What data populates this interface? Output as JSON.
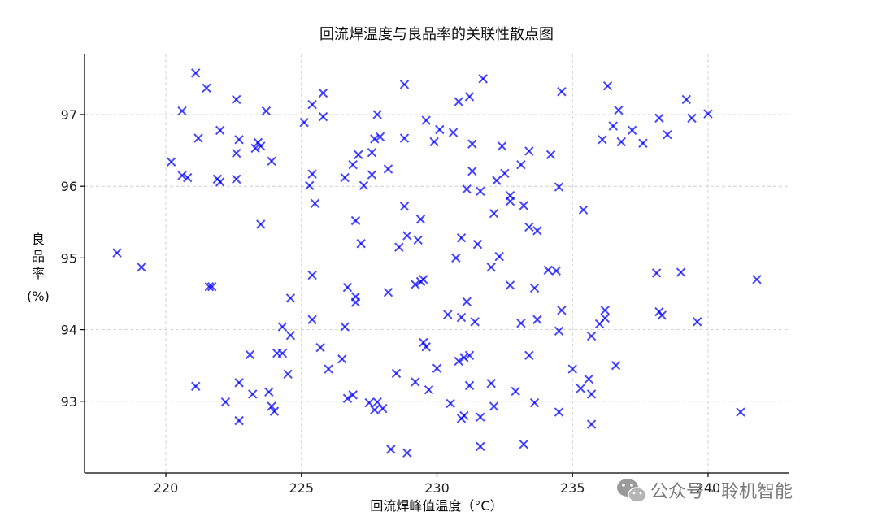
{
  "chart_data": {
    "type": "scatter",
    "title": "回流焊温度与良品率的关联性散点图",
    "xlabel": "回流焊峰值温度（°C）",
    "ylabel": [
      "良",
      "品",
      "率",
      "(%)"
    ],
    "xlim": [
      217,
      243
    ],
    "ylim": [
      92.0,
      97.85
    ],
    "x_ticks": [
      220,
      225,
      230,
      235,
      240
    ],
    "y_ticks": [
      93,
      94,
      95,
      96,
      97
    ],
    "grid": true,
    "marker": "x",
    "color": "#0000ff",
    "points": [
      [
        221.1,
        97.58
      ],
      [
        221.5,
        97.37
      ],
      [
        222.6,
        97.21
      ],
      [
        228.8,
        97.42
      ],
      [
        231.7,
        97.5
      ],
      [
        231.2,
        97.25
      ],
      [
        225.8,
        97.3
      ],
      [
        225.4,
        97.14
      ],
      [
        234.6,
        97.32
      ],
      [
        236.3,
        97.4
      ],
      [
        230.8,
        97.18
      ],
      [
        220.6,
        97.05
      ],
      [
        223.7,
        97.05
      ],
      [
        225.8,
        96.97
      ],
      [
        227.8,
        97.0
      ],
      [
        229.6,
        96.92
      ],
      [
        225.1,
        96.89
      ],
      [
        230.1,
        96.79
      ],
      [
        230.6,
        96.75
      ],
      [
        236.7,
        97.06
      ],
      [
        238.2,
        96.95
      ],
      [
        239.2,
        97.21
      ],
      [
        239.4,
        96.95
      ],
      [
        240.0,
        97.01
      ],
      [
        236.5,
        96.84
      ],
      [
        237.2,
        96.78
      ],
      [
        238.5,
        96.72
      ],
      [
        236.1,
        96.65
      ],
      [
        236.8,
        96.62
      ],
      [
        237.6,
        96.6
      ],
      [
        221.2,
        96.67
      ],
      [
        222.0,
        96.78
      ],
      [
        222.7,
        96.65
      ],
      [
        223.4,
        96.61
      ],
      [
        223.3,
        96.53
      ],
      [
        223.5,
        96.56
      ],
      [
        222.6,
        96.46
      ],
      [
        223.9,
        96.35
      ],
      [
        227.7,
        96.66
      ],
      [
        227.9,
        96.69
      ],
      [
        228.8,
        96.67
      ],
      [
        229.9,
        96.62
      ],
      [
        231.3,
        96.59
      ],
      [
        232.4,
        96.56
      ],
      [
        233.4,
        96.49
      ],
      [
        234.2,
        96.44
      ],
      [
        227.1,
        96.44
      ],
      [
        227.6,
        96.47
      ],
      [
        226.9,
        96.3
      ],
      [
        228.2,
        96.24
      ],
      [
        227.6,
        96.16
      ],
      [
        226.6,
        96.12
      ],
      [
        227.3,
        96.01
      ],
      [
        225.4,
        96.17
      ],
      [
        225.3,
        96.01
      ],
      [
        220.2,
        96.34
      ],
      [
        220.6,
        96.15
      ],
      [
        220.8,
        96.12
      ],
      [
        221.9,
        96.1
      ],
      [
        222.0,
        96.06
      ],
      [
        222.6,
        96.1
      ],
      [
        231.3,
        96.21
      ],
      [
        232.5,
        96.18
      ],
      [
        232.2,
        96.08
      ],
      [
        233.1,
        96.3
      ],
      [
        231.1,
        95.96
      ],
      [
        231.6,
        95.93
      ],
      [
        232.7,
        95.87
      ],
      [
        232.7,
        95.79
      ],
      [
        233.2,
        95.73
      ],
      [
        234.5,
        95.99
      ],
      [
        225.5,
        95.76
      ],
      [
        228.8,
        95.72
      ],
      [
        229.4,
        95.54
      ],
      [
        232.1,
        95.62
      ],
      [
        233.4,
        95.43
      ],
      [
        233.7,
        95.38
      ],
      [
        235.4,
        95.67
      ],
      [
        223.5,
        95.47
      ],
      [
        227.0,
        95.52
      ],
      [
        227.2,
        95.2
      ],
      [
        228.6,
        95.15
      ],
      [
        228.9,
        95.31
      ],
      [
        229.3,
        95.25
      ],
      [
        230.9,
        95.28
      ],
      [
        231.5,
        95.19
      ],
      [
        230.7,
        95.0
      ],
      [
        232.3,
        95.02
      ],
      [
        232.0,
        94.87
      ],
      [
        234.1,
        94.83
      ],
      [
        234.4,
        94.82
      ],
      [
        218.2,
        95.07
      ],
      [
        219.1,
        94.87
      ],
      [
        221.6,
        94.6
      ],
      [
        221.7,
        94.6
      ],
      [
        225.4,
        94.76
      ],
      [
        226.7,
        94.59
      ],
      [
        227.0,
        94.46
      ],
      [
        227.0,
        94.38
      ],
      [
        228.2,
        94.52
      ],
      [
        229.2,
        94.63
      ],
      [
        229.4,
        94.67
      ],
      [
        229.5,
        94.7
      ],
      [
        232.7,
        94.62
      ],
      [
        233.6,
        94.58
      ],
      [
        238.1,
        94.79
      ],
      [
        239.0,
        94.8
      ],
      [
        241.8,
        94.7
      ],
      [
        224.6,
        94.44
      ],
      [
        224.3,
        94.04
      ],
      [
        224.6,
        93.92
      ],
      [
        225.4,
        94.14
      ],
      [
        226.6,
        94.04
      ],
      [
        230.4,
        94.21
      ],
      [
        230.9,
        94.17
      ],
      [
        231.1,
        94.39
      ],
      [
        231.4,
        94.11
      ],
      [
        233.1,
        94.09
      ],
      [
        233.7,
        94.14
      ],
      [
        234.6,
        94.27
      ],
      [
        234.5,
        93.98
      ],
      [
        235.7,
        93.91
      ],
      [
        236.0,
        94.08
      ],
      [
        236.2,
        94.16
      ],
      [
        236.2,
        94.27
      ],
      [
        238.2,
        94.25
      ],
      [
        238.3,
        94.2
      ],
      [
        239.6,
        94.11
      ],
      [
        223.1,
        93.65
      ],
      [
        224.1,
        93.67
      ],
      [
        224.3,
        93.67
      ],
      [
        225.7,
        93.75
      ],
      [
        226.0,
        93.45
      ],
      [
        226.5,
        93.59
      ],
      [
        229.5,
        93.82
      ],
      [
        229.6,
        93.76
      ],
      [
        230.0,
        93.46
      ],
      [
        230.8,
        93.56
      ],
      [
        231.0,
        93.61
      ],
      [
        231.2,
        93.64
      ],
      [
        233.4,
        93.64
      ],
      [
        235.0,
        93.45
      ],
      [
        236.6,
        93.5
      ],
      [
        221.1,
        93.21
      ],
      [
        222.7,
        93.26
      ],
      [
        223.2,
        93.1
      ],
      [
        223.8,
        93.13
      ],
      [
        224.5,
        93.38
      ],
      [
        226.7,
        93.04
      ],
      [
        226.9,
        93.09
      ],
      [
        228.5,
        93.39
      ],
      [
        229.2,
        93.27
      ],
      [
        229.7,
        93.16
      ],
      [
        231.2,
        93.22
      ],
      [
        232.0,
        93.25
      ],
      [
        232.9,
        93.14
      ],
      [
        235.3,
        93.18
      ],
      [
        235.6,
        93.31
      ],
      [
        235.7,
        93.1
      ],
      [
        222.2,
        92.99
      ],
      [
        222.7,
        92.73
      ],
      [
        223.9,
        92.93
      ],
      [
        224.0,
        92.86
      ],
      [
        227.5,
        92.98
      ],
      [
        227.7,
        92.88
      ],
      [
        227.8,
        92.99
      ],
      [
        228.0,
        92.9
      ],
      [
        230.5,
        92.97
      ],
      [
        230.9,
        92.76
      ],
      [
        231.0,
        92.8
      ],
      [
        231.6,
        92.78
      ],
      [
        232.1,
        92.93
      ],
      [
        233.6,
        92.98
      ],
      [
        234.5,
        92.85
      ],
      [
        235.7,
        92.68
      ],
      [
        241.2,
        92.85
      ],
      [
        228.3,
        92.33
      ],
      [
        228.9,
        92.28
      ],
      [
        231.6,
        92.37
      ],
      [
        233.2,
        92.4
      ]
    ]
  },
  "watermark": {
    "icon": "wechat-icon",
    "text": "公众号 · 聆机智能"
  }
}
